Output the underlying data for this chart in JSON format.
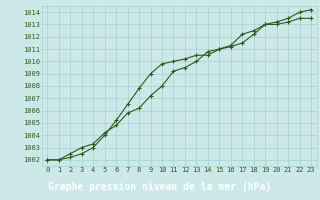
{
  "title": "Graphe pression niveau de la mer (hPa)",
  "x_values": [
    0,
    1,
    2,
    3,
    4,
    5,
    6,
    7,
    8,
    9,
    10,
    11,
    12,
    13,
    14,
    15,
    16,
    17,
    18,
    19,
    20,
    21,
    22,
    23
  ],
  "line1": [
    1002.0,
    1002.0,
    1002.2,
    1002.5,
    1003.0,
    1004.0,
    1005.2,
    1006.5,
    1007.8,
    1009.0,
    1009.8,
    1010.0,
    1010.2,
    1010.5,
    1010.5,
    1011.0,
    1011.2,
    1011.5,
    1012.2,
    1013.0,
    1013.0,
    1013.2,
    1013.5,
    1013.5
  ],
  "line2": [
    1002.0,
    1002.0,
    1002.5,
    1003.0,
    1003.3,
    1004.2,
    1004.8,
    1005.8,
    1006.2,
    1007.2,
    1008.0,
    1009.2,
    1009.5,
    1010.0,
    1010.8,
    1011.0,
    1011.3,
    1012.2,
    1012.5,
    1013.0,
    1013.2,
    1013.5,
    1014.0,
    1014.2
  ],
  "bg_color": "#cce8e8",
  "grid_color": "#99cccc",
  "line_color": "#2d5a1b",
  "line_width": 0.8,
  "marker": "+",
  "marker_size": 3,
  "marker_edge_width": 0.8,
  "ylim": [
    1001.5,
    1014.5
  ],
  "xlim": [
    -0.5,
    23.5
  ],
  "yticks": [
    1002,
    1003,
    1004,
    1005,
    1006,
    1007,
    1008,
    1009,
    1010,
    1011,
    1012,
    1013,
    1014
  ],
  "xticks": [
    0,
    1,
    2,
    3,
    4,
    5,
    6,
    7,
    8,
    9,
    10,
    11,
    12,
    13,
    14,
    15,
    16,
    17,
    18,
    19,
    20,
    21,
    22,
    23
  ],
  "tick_fontsize": 5,
  "title_fontsize": 7,
  "tick_color": "#2d5a1b",
  "title_bg": "#2d5a1b",
  "title_font_color": "#ffffff"
}
